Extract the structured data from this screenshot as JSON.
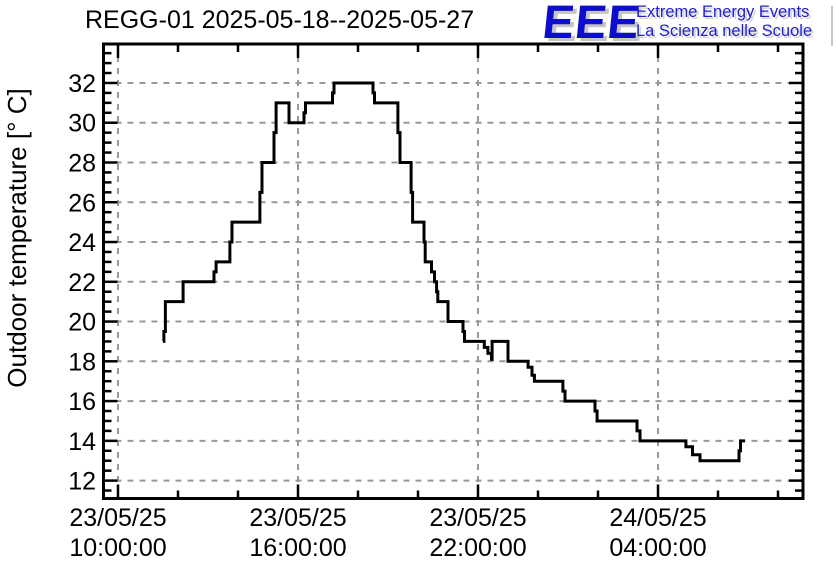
{
  "logo": {
    "acronym": "EEE",
    "line1": "Extreme Energy Events",
    "line2": "La Scienza nelle Scuole",
    "blue": "#0d0dd0",
    "shadow_gray": "#c6c6c6"
  },
  "chart_data": {
    "type": "line",
    "step": "after",
    "title": "REGG-01 2025-05-18--2025-05-27",
    "xlabel": "",
    "ylabel": "Outdoor temperature [° C]",
    "x_unit": "hours since 2025-05-23 00:00:00",
    "xlim": [
      9.517,
      32.833
    ],
    "ylim": [
      11.1,
      33.96
    ],
    "grid": true,
    "legend": "none",
    "line_color": "#000000",
    "grid_color": "#999999",
    "axis_color": "#000000",
    "x_major_ticks": [
      {
        "value": 10,
        "label_line1": "23/05/25",
        "label_line2": "10:00:00"
      },
      {
        "value": 16,
        "label_line1": "23/05/25",
        "label_line2": "16:00:00"
      },
      {
        "value": 22,
        "label_line1": "23/05/25",
        "label_line2": "22:00:00"
      },
      {
        "value": 28,
        "label_line1": "24/05/25",
        "label_line2": "04:00:00"
      }
    ],
    "x_minor_step_hours": 2,
    "y_major_ticks": [
      12,
      14,
      16,
      18,
      20,
      22,
      24,
      26,
      28,
      30,
      32
    ],
    "y_minor_step": 0.5,
    "points": [
      [
        11.5,
        19.0
      ],
      [
        11.53,
        19.5
      ],
      [
        11.58,
        21.0
      ],
      [
        12.17,
        22.0
      ],
      [
        13.2,
        22.5
      ],
      [
        13.27,
        23.0
      ],
      [
        13.73,
        24.0
      ],
      [
        13.8,
        25.0
      ],
      [
        14.73,
        26.5
      ],
      [
        14.8,
        28.0
      ],
      [
        15.2,
        29.5
      ],
      [
        15.27,
        31.0
      ],
      [
        15.7,
        30.0
      ],
      [
        16.2,
        30.5
      ],
      [
        16.25,
        31.0
      ],
      [
        17.15,
        31.5
      ],
      [
        17.2,
        32.0
      ],
      [
        18.5,
        31.5
      ],
      [
        18.55,
        31.0
      ],
      [
        19.33,
        29.5
      ],
      [
        19.4,
        28.0
      ],
      [
        19.77,
        26.5
      ],
      [
        19.82,
        25.0
      ],
      [
        20.2,
        24.0
      ],
      [
        20.24,
        23.0
      ],
      [
        20.45,
        22.5
      ],
      [
        20.55,
        22.0
      ],
      [
        20.62,
        21.5
      ],
      [
        20.66,
        21.0
      ],
      [
        21.0,
        20.0
      ],
      [
        21.5,
        19.5
      ],
      [
        21.55,
        19.0
      ],
      [
        22.21,
        18.7
      ],
      [
        22.33,
        18.4
      ],
      [
        22.45,
        18.1
      ],
      [
        22.47,
        19.0
      ],
      [
        23.0,
        18.0
      ],
      [
        23.67,
        17.7
      ],
      [
        23.8,
        17.3
      ],
      [
        23.88,
        17.0
      ],
      [
        24.83,
        16.5
      ],
      [
        24.9,
        16.0
      ],
      [
        25.9,
        15.5
      ],
      [
        25.97,
        15.0
      ],
      [
        27.3,
        14.5
      ],
      [
        27.4,
        14.0
      ],
      [
        28.93,
        13.7
      ],
      [
        29.15,
        13.3
      ],
      [
        29.4,
        13.0
      ],
      [
        30.7,
        13.5
      ],
      [
        30.75,
        14.0
      ],
      [
        30.9,
        14.0
      ]
    ]
  }
}
